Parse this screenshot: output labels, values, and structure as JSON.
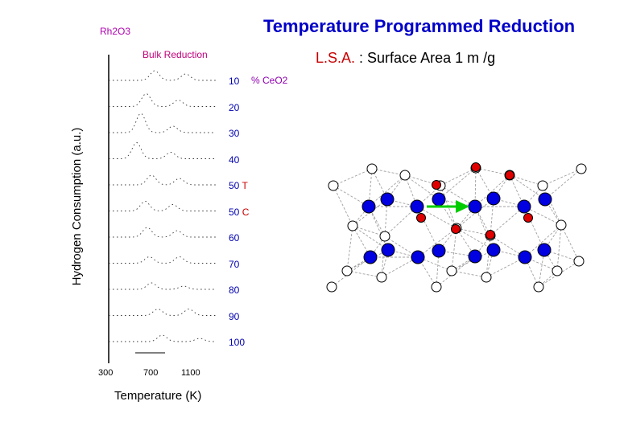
{
  "header": {
    "title": "Temperature Programmed Reduction",
    "subtitle_prefix": "L.S.A.",
    "subtitle_rest": " : Surface Area 1 m  /g"
  },
  "annotations": {
    "corner_label": "Rh2O3",
    "bulk_label": "Bulk Reduction",
    "ceo2_label": "% CeO2"
  },
  "chart_data": {
    "type": "line",
    "title": "Temperature Programmed Reduction",
    "xlabel": "Temperature (K)",
    "ylabel": "Hydrogen Consumption (a.u.)",
    "x_ticks": [
      "300",
      "700",
      "1100"
    ],
    "xlim": [
      300,
      1300
    ],
    "series": [
      {
        "name": "10",
        "suffix": "",
        "color": "#0000b0",
        "peaks": [
          [
            730,
            3
          ],
          [
            1020,
            2
          ]
        ]
      },
      {
        "name": "20",
        "suffix": "",
        "color": "#0000b0",
        "peaks": [
          [
            650,
            4
          ],
          [
            950,
            2
          ]
        ]
      },
      {
        "name": "30",
        "suffix": "",
        "color": "#0000b0",
        "peaks": [
          [
            600,
            6
          ],
          [
            900,
            2
          ]
        ]
      },
      {
        "name": "40",
        "suffix": "",
        "color": "#0000b0",
        "peaks": [
          [
            560,
            5
          ],
          [
            880,
            2
          ]
        ]
      },
      {
        "name": "50",
        "suffix": " T",
        "color": "#0000b0",
        "peaks": [
          [
            700,
            3
          ],
          [
            960,
            2
          ]
        ]
      },
      {
        "name": "50",
        "suffix": " C",
        "color": "#0000b0",
        "peaks": [
          [
            640,
            3
          ],
          [
            900,
            2
          ]
        ]
      },
      {
        "name": "60",
        "suffix": "",
        "color": "#0000b0",
        "peaks": [
          [
            660,
            3
          ],
          [
            940,
            2
          ]
        ]
      },
      {
        "name": "70",
        "suffix": "",
        "color": "#0000b0",
        "peaks": [
          [
            680,
            2
          ],
          [
            960,
            2
          ]
        ]
      },
      {
        "name": "80",
        "suffix": "",
        "color": "#0000b0",
        "peaks": [
          [
            700,
            2
          ],
          [
            1000,
            1
          ]
        ]
      },
      {
        "name": "90",
        "suffix": "",
        "color": "#0000b0",
        "peaks": [
          [
            760,
            2
          ],
          [
            1050,
            2
          ]
        ]
      },
      {
        "name": "100",
        "suffix": "",
        "color": "#0000b0",
        "peaks": [
          [
            800,
            2
          ],
          [
            1150,
            1
          ]
        ]
      }
    ]
  },
  "lattice": {
    "white_atom": "#ffffff",
    "blue_atom": "#0000e0",
    "red_atom": "#e00000",
    "arrow_color": "#00cc00",
    "line_color": "#a0a0a0"
  }
}
